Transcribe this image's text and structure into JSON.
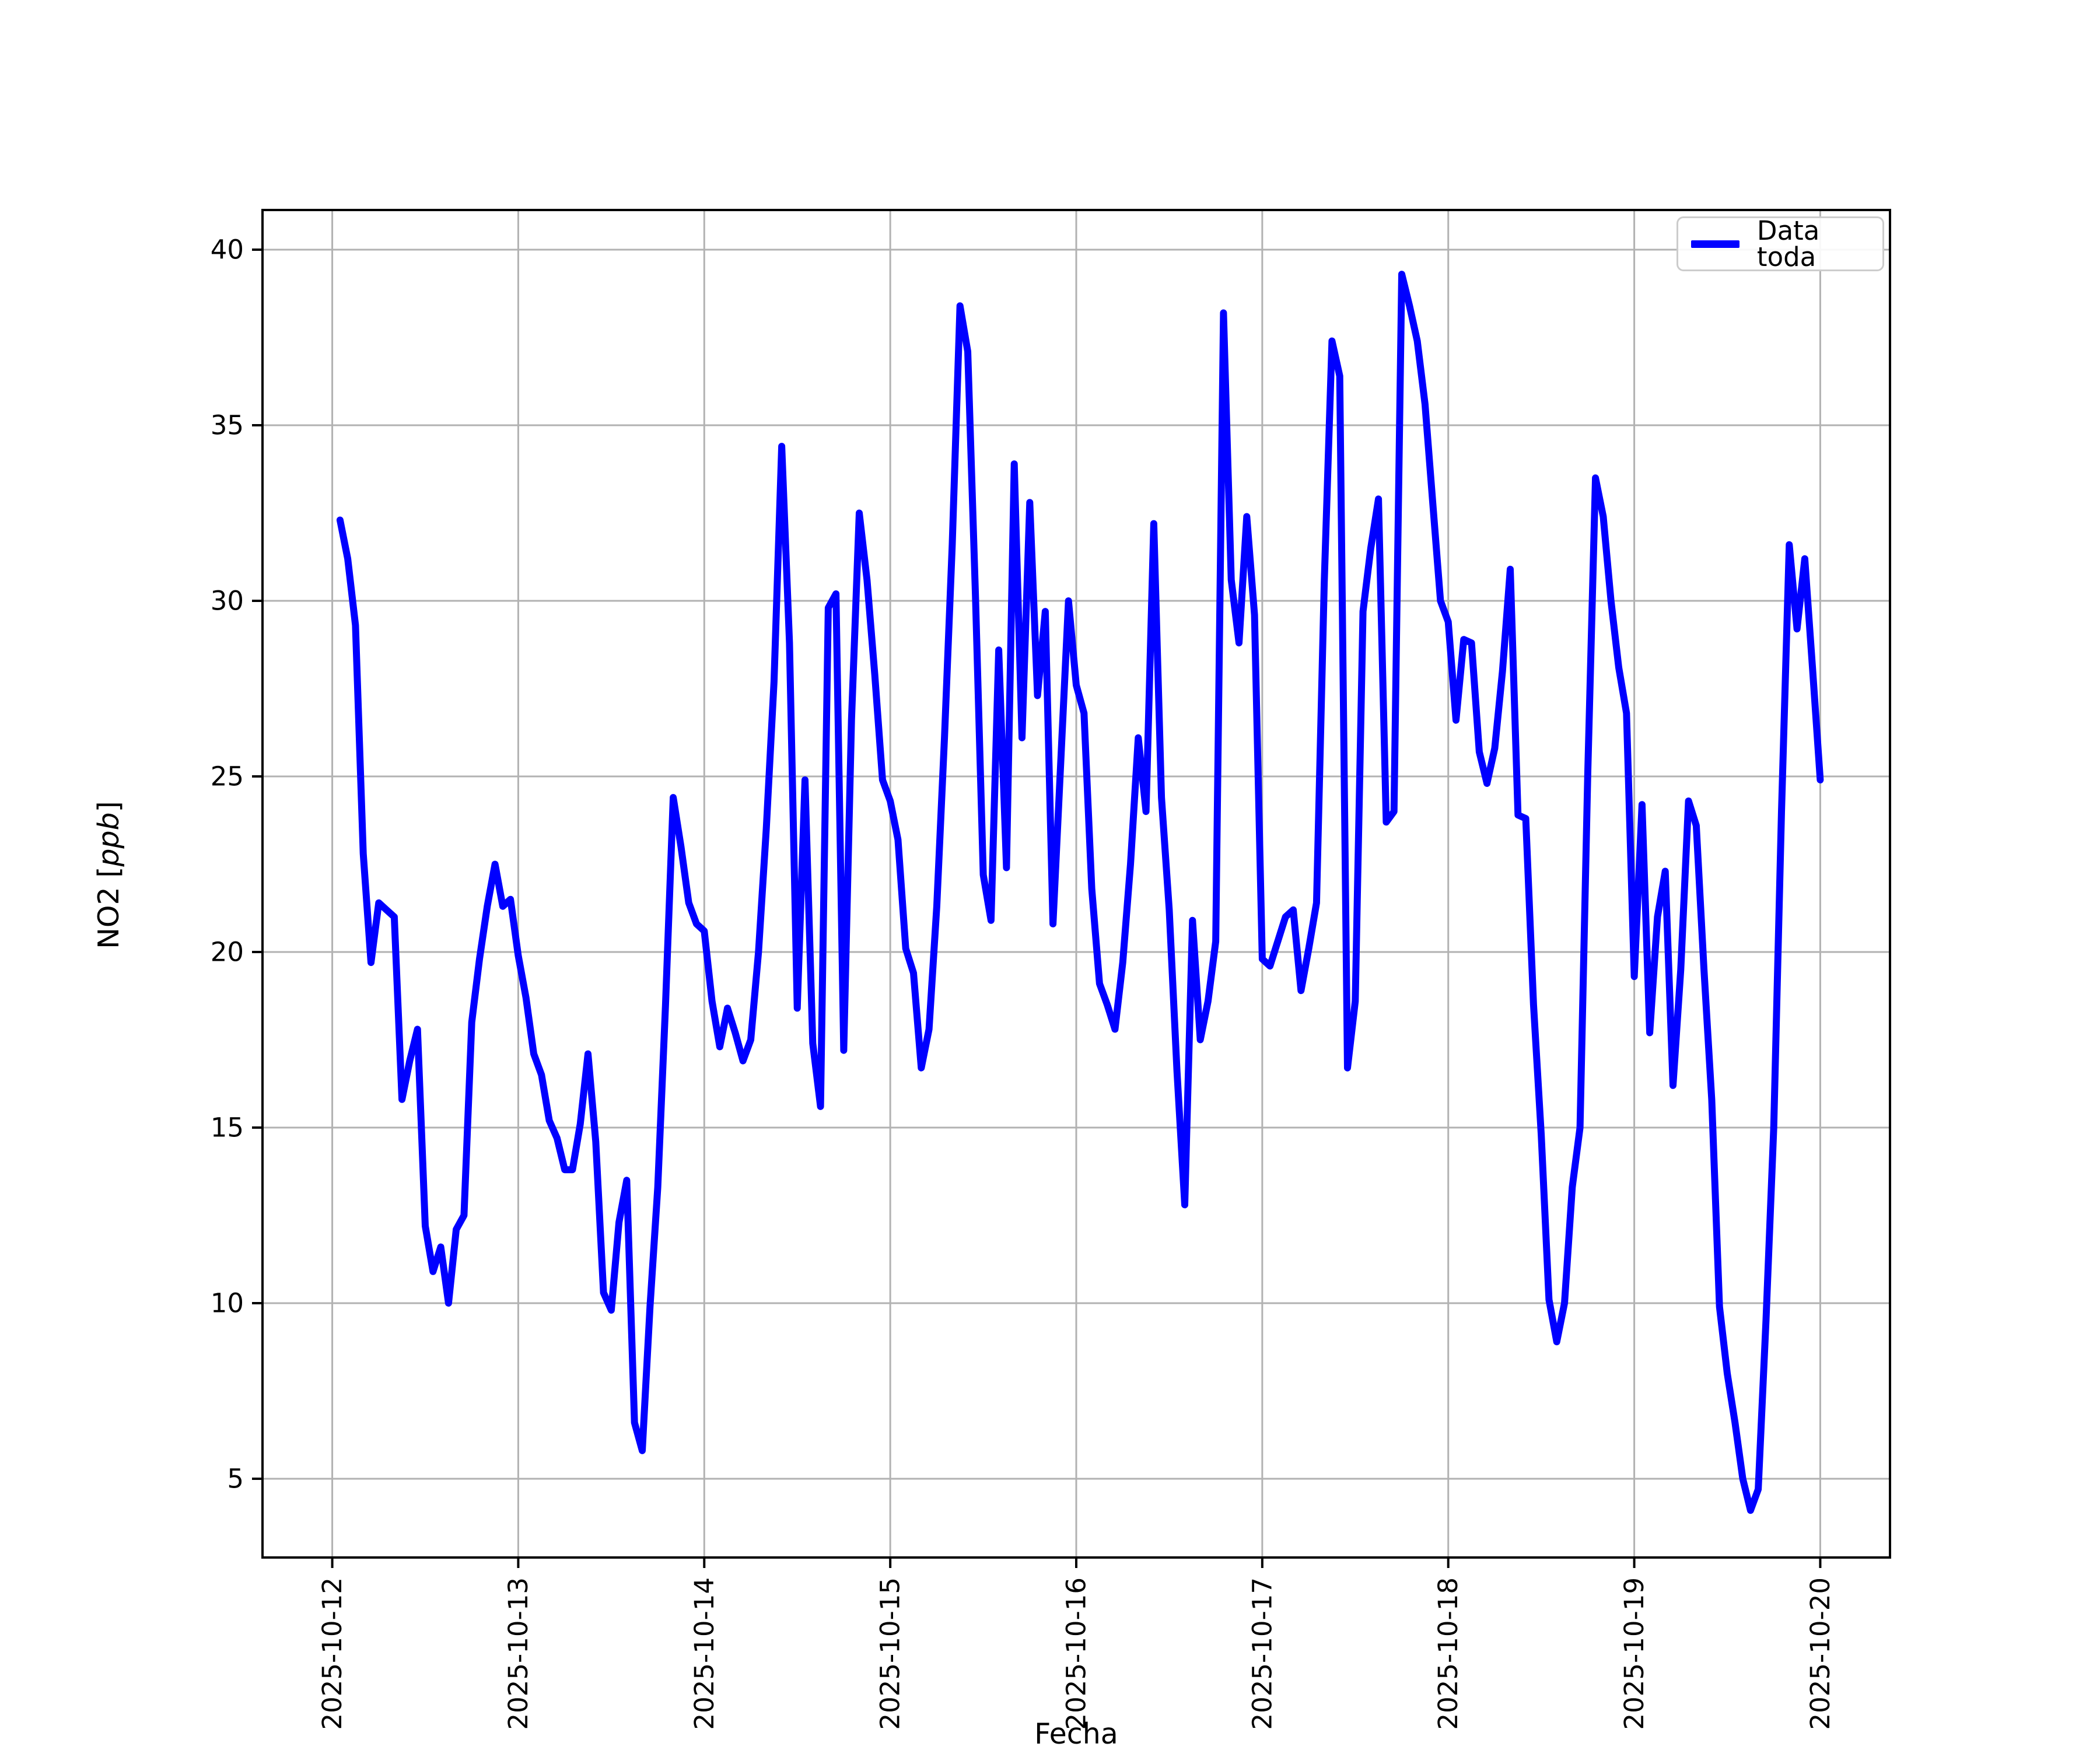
{
  "figure": {
    "background": "#ffffff"
  },
  "chart_data": {
    "type": "line",
    "title": "",
    "xlabel": "Fecha",
    "ylabel": "NO2 [ppb]",
    "ylabel_parts": {
      "prefix": "NO2 [",
      "italic": "ppb",
      "suffix": "]"
    },
    "legend": {
      "label": "Data toda",
      "position": "upper right"
    },
    "line_color": "#0000ff",
    "grid": true,
    "grid_color": "#b2b2b2",
    "frame_color": "#000000",
    "x_tick_labels": [
      "2025-10-12",
      "2025-10-13",
      "2025-10-14",
      "2025-10-15",
      "2025-10-16",
      "2025-10-17",
      "2025-10-18",
      "2025-10-19",
      "2025-10-20"
    ],
    "y_ticks": [
      40,
      35,
      30,
      25,
      20,
      15,
      10,
      5
    ],
    "x_start": "2025-10-12 01:00",
    "x_step_hours": 1,
    "ylim": [
      2.8,
      41.1
    ],
    "xlim_hours_from_first_tick": [
      -9,
      201
    ],
    "series": [
      {
        "name": "Data toda",
        "values": [
          32.3,
          31.2,
          29.3,
          22.8,
          19.7,
          21.4,
          21.2,
          21.0,
          15.8,
          16.9,
          17.8,
          12.2,
          10.9,
          11.6,
          10.0,
          12.1,
          12.5,
          18.0,
          19.8,
          21.3,
          22.5,
          21.3,
          21.5,
          19.9,
          18.7,
          17.1,
          16.5,
          15.2,
          14.7,
          13.8,
          13.8,
          15.1,
          17.1,
          14.6,
          10.3,
          9.8,
          12.3,
          13.5,
          6.6,
          5.8,
          9.9,
          13.3,
          18.5,
          24.4,
          23.0,
          21.4,
          20.8,
          20.6,
          18.6,
          17.3,
          18.4,
          17.7,
          16.9,
          17.5,
          20.0,
          23.5,
          27.7,
          34.4,
          28.8,
          18.4,
          24.9,
          17.4,
          15.6,
          29.8,
          30.2,
          17.2,
          26.6,
          32.5,
          30.6,
          27.9,
          24.9,
          24.3,
          23.2,
          20.1,
          19.4,
          16.7,
          17.8,
          21.3,
          26.1,
          31.6,
          38.4,
          37.1,
          30.1,
          22.2,
          20.9,
          28.6,
          22.4,
          33.9,
          26.1,
          32.8,
          27.3,
          29.7,
          20.8,
          25.4,
          30.0,
          27.6,
          26.8,
          21.8,
          19.1,
          18.5,
          17.8,
          19.7,
          22.5,
          26.1,
          24.0,
          32.2,
          24.4,
          21.2,
          16.6,
          12.8,
          20.9,
          17.5,
          18.6,
          20.3,
          38.2,
          30.6,
          28.8,
          32.4,
          29.6,
          19.8,
          19.6,
          20.3,
          21.0,
          21.2,
          18.9,
          20.1,
          21.4,
          30.5,
          37.4,
          36.4,
          16.7,
          18.6,
          29.7,
          31.5,
          32.9,
          23.7,
          24.0,
          39.3,
          38.4,
          37.4,
          35.6,
          32.8,
          30.0,
          29.4,
          26.6,
          28.9,
          28.8,
          25.7,
          24.8,
          25.8,
          28.0,
          30.9,
          23.9,
          23.8,
          18.5,
          14.8,
          10.1,
          8.9,
          10.0,
          13.3,
          15.0,
          25.1,
          33.5,
          32.4,
          30.0,
          28.1,
          26.8,
          19.3,
          24.2,
          17.7,
          21.0,
          22.3,
          16.2,
          19.5,
          24.3,
          23.6,
          19.5,
          15.8,
          9.9,
          8.0,
          6.6,
          5.0,
          4.1,
          4.7,
          9.5,
          15.0,
          24.0,
          31.6,
          29.2,
          31.2,
          28.1,
          24.9
        ]
      }
    ]
  }
}
